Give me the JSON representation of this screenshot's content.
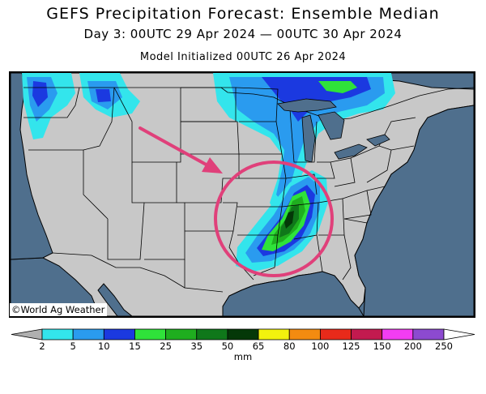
{
  "title": "GEFS Precipitation Forecast: Ensemble Median",
  "subtitle": "Day 3: 00UTC 29 Apr 2024 — 00UTC 30 Apr 2024",
  "init_line": "Model Initialized 00UTC 26 Apr 2024",
  "credit": "©World Ag Weather",
  "colors": {
    "ocean": "#4f6f8d",
    "land": "#c8c8c8",
    "lakes": "#4f6f8d",
    "highlight_circle": "#e0407a",
    "arrow": "#e0407a"
  },
  "colorbar": {
    "units": "mm",
    "tick_labels": [
      "2",
      "5",
      "10",
      "15",
      "25",
      "35",
      "50",
      "65",
      "80",
      "100",
      "125",
      "150",
      "200",
      "250"
    ],
    "bins": [
      {
        "from": "2",
        "to": "5",
        "color": "#33e5ec"
      },
      {
        "from": "5",
        "to": "10",
        "color": "#2a9bef"
      },
      {
        "from": "10",
        "to": "15",
        "color": "#1b39e0"
      },
      {
        "from": "15",
        "to": "25",
        "color": "#2fe23a"
      },
      {
        "from": "25",
        "to": "35",
        "color": "#1fae1f"
      },
      {
        "from": "35",
        "to": "50",
        "color": "#0f781a"
      },
      {
        "from": "50",
        "to": "65",
        "color": "#043808"
      },
      {
        "from": "65",
        "to": "80",
        "color": "#f2f20e"
      },
      {
        "from": "80",
        "to": "100",
        "color": "#f38b10"
      },
      {
        "from": "100",
        "to": "125",
        "color": "#e82a1a"
      },
      {
        "from": "125",
        "to": "150",
        "color": "#c21a4f"
      },
      {
        "from": "150",
        "to": "200",
        "color": "#f23df2"
      },
      {
        "from": "200",
        "to": "250",
        "color": "#8c4ad0"
      }
    ],
    "under_color": "#b0b0b0",
    "over_color": "#ffffff"
  }
}
